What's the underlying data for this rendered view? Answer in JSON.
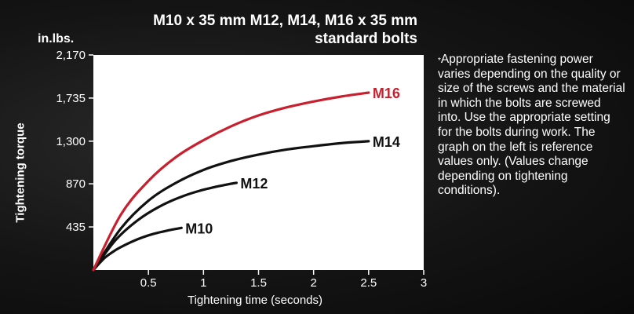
{
  "header": {
    "title_line1": "M10 x 35 mm  M12, M14, M16 x 35 mm",
    "title_line2": "standard bolts"
  },
  "note": {
    "marker": "*",
    "text": "Appropriate fastening power varies depending on the quality or size of the screws and the material in which the bolts are screwed into. Use the appropriate setting for the bolts during work. The graph on the left is reference values only. (Values change depending on tightening conditions)."
  },
  "colors": {
    "background": "#141414",
    "axis": "#ffffff",
    "highlight_series": "#c8202e",
    "series": "#111111",
    "text": "#ffffff"
  },
  "chart_data": {
    "type": "line",
    "unit": "in.lbs.",
    "xlabel": "Tightening time (seconds)",
    "ylabel": "Tightening torque",
    "xlim": [
      0,
      3
    ],
    "ylim": [
      0,
      2170
    ],
    "xticks": [
      0.5,
      1,
      1.5,
      2,
      2.5,
      3
    ],
    "xtick_labels": [
      "0.5",
      "1",
      "1.5",
      "2",
      "2.5",
      "3"
    ],
    "yticks": [
      435,
      870,
      1300,
      1735,
      2170
    ],
    "ytick_labels": [
      "435",
      "870",
      "1,300",
      "1,735",
      "2,170"
    ],
    "grid": false,
    "legend": "inline labels at line ends",
    "series": [
      {
        "name": "M10",
        "color": "#111111",
        "x": [
          0,
          0.1,
          0.2,
          0.3,
          0.4,
          0.5,
          0.6,
          0.7,
          0.8
        ],
        "y": [
          0,
          120,
          200,
          260,
          310,
          350,
          380,
          405,
          425
        ]
      },
      {
        "name": "M12",
        "color": "#111111",
        "x": [
          0,
          0.2,
          0.4,
          0.6,
          0.8,
          1.0,
          1.2,
          1.3
        ],
        "y": [
          0,
          300,
          500,
          640,
          740,
          810,
          860,
          880
        ]
      },
      {
        "name": "M14",
        "color": "#111111",
        "x": [
          0,
          0.25,
          0.5,
          0.75,
          1.0,
          1.25,
          1.5,
          1.75,
          2.0,
          2.25,
          2.5
        ],
        "y": [
          0,
          420,
          700,
          880,
          1010,
          1100,
          1165,
          1215,
          1250,
          1280,
          1300
        ]
      },
      {
        "name": "M16",
        "color": "#c8202e",
        "x": [
          0,
          0.25,
          0.5,
          0.75,
          1.0,
          1.25,
          1.5,
          1.75,
          2.0,
          2.25,
          2.5
        ],
        "y": [
          0,
          560,
          900,
          1140,
          1310,
          1450,
          1560,
          1640,
          1700,
          1750,
          1790
        ]
      }
    ]
  }
}
